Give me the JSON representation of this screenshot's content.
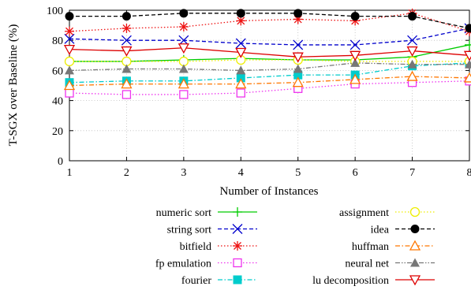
{
  "chart_data": {
    "type": "line",
    "xlabel": "Number of Instances",
    "ylabel": "T-SGX over Baseline (%)",
    "x": [
      1,
      2,
      3,
      4,
      5,
      6,
      7,
      8
    ],
    "xlim": [
      1,
      8
    ],
    "ylim": [
      0,
      100
    ],
    "yticks": [
      0,
      20,
      40,
      60,
      80,
      100
    ],
    "grid": true,
    "legend_position": "bottom",
    "series": [
      {
        "name": "numeric sort",
        "color": "#00cc00",
        "dash": "solid",
        "marker": "plus",
        "values": [
          66,
          66,
          67,
          68,
          67,
          67,
          69,
          77
        ]
      },
      {
        "name": "string sort",
        "color": "#0000cc",
        "dash": "dashed",
        "marker": "x",
        "values": [
          81,
          80,
          80,
          78,
          77,
          77,
          80,
          88
        ]
      },
      {
        "name": "bitfield",
        "color": "#ee1111",
        "dash": "dotted",
        "marker": "star",
        "values": [
          86,
          88,
          89,
          93,
          94,
          93,
          98,
          86
        ]
      },
      {
        "name": "fp emulation",
        "color": "#ee33ee",
        "dash": "dotted",
        "marker": "open-square",
        "values": [
          45,
          44,
          44,
          45,
          48,
          51,
          52,
          53
        ]
      },
      {
        "name": "fourier",
        "color": "#00cccc",
        "dash": "dashdot",
        "marker": "filled-square",
        "values": [
          52,
          53,
          53,
          55,
          57,
          57,
          63,
          65
        ]
      },
      {
        "name": "assignment",
        "color": "#eeee00",
        "dash": "dotted",
        "marker": "open-circle",
        "values": [
          66,
          66,
          66,
          67,
          67,
          66,
          66,
          66
        ]
      },
      {
        "name": "idea",
        "color": "#000000",
        "dash": "dashed",
        "marker": "filled-circle",
        "values": [
          96,
          96,
          98,
          98,
          98,
          96,
          96,
          88
        ]
      },
      {
        "name": "huffman",
        "color": "#ff7700",
        "dash": "dashdot",
        "marker": "open-triangle-up",
        "values": [
          50,
          51,
          51,
          51,
          52,
          54,
          56,
          55
        ]
      },
      {
        "name": "neural net",
        "color": "#777777",
        "dash": "dashdotdot",
        "marker": "filled-triangle-up",
        "values": [
          60,
          61,
          61,
          60,
          61,
          65,
          64,
          64
        ]
      },
      {
        "name": "lu decomposition",
        "color": "#dd0000",
        "dash": "solid",
        "marker": "open-triangle-down",
        "values": [
          74,
          73,
          75,
          72,
          69,
          70,
          73,
          70
        ]
      }
    ]
  }
}
